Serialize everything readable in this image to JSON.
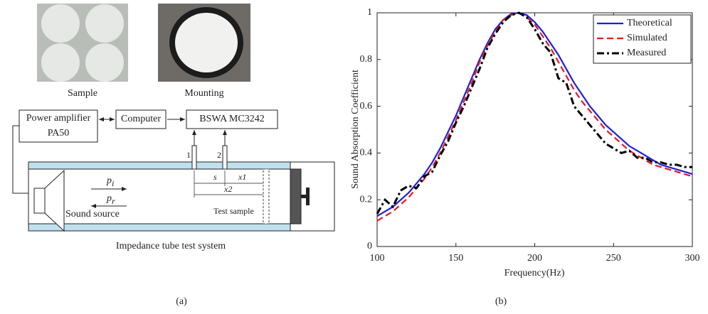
{
  "panel_a": {
    "label": "(a)",
    "photos": [
      "Sample",
      "Mounting"
    ],
    "boxes": {
      "amplifier": [
        "Power amplifier",
        "PA50"
      ],
      "computer": "Computer",
      "analyzer": "BSWA MC3242"
    },
    "mics": [
      "1",
      "2"
    ],
    "distances": {
      "s": "s",
      "x1": "x1",
      "x2": "x2"
    },
    "incident": [
      "p",
      "i"
    ],
    "reflected": [
      "p",
      "r"
    ],
    "source": "Sound source",
    "sample": "Test sample",
    "caption": "Impedance tube test system"
  },
  "chart_data": {
    "type": "line",
    "label": "(b)",
    "xlabel": "Frequency(Hz)",
    "ylabel": "Sound Absorption Coefficient",
    "x": [
      100,
      105,
      110,
      115,
      120,
      125,
      130,
      135,
      140,
      145,
      150,
      155,
      160,
      165,
      170,
      175,
      180,
      185,
      190,
      195,
      200,
      205,
      210,
      215,
      220,
      225,
      230,
      235,
      240,
      245,
      250,
      255,
      260,
      265,
      270,
      275,
      280,
      285,
      290,
      295,
      300
    ],
    "series": [
      {
        "name": "Theoretical",
        "color": "#1f1fe0",
        "dash": "solid",
        "values": [
          0.13,
          0.15,
          0.17,
          0.2,
          0.23,
          0.27,
          0.31,
          0.36,
          0.42,
          0.49,
          0.56,
          0.64,
          0.72,
          0.8,
          0.87,
          0.93,
          0.97,
          0.995,
          1.0,
          0.99,
          0.96,
          0.92,
          0.87,
          0.82,
          0.76,
          0.7,
          0.65,
          0.6,
          0.56,
          0.52,
          0.49,
          0.46,
          0.43,
          0.41,
          0.39,
          0.37,
          0.35,
          0.34,
          0.33,
          0.32,
          0.31
        ]
      },
      {
        "name": "Simulated",
        "color": "#e8191b",
        "dash": "dashed",
        "values": [
          0.11,
          0.13,
          0.15,
          0.18,
          0.21,
          0.25,
          0.29,
          0.34,
          0.4,
          0.47,
          0.54,
          0.62,
          0.7,
          0.79,
          0.86,
          0.92,
          0.97,
          0.99,
          1.0,
          0.98,
          0.95,
          0.9,
          0.85,
          0.79,
          0.73,
          0.67,
          0.62,
          0.58,
          0.54,
          0.5,
          0.47,
          0.44,
          0.41,
          0.39,
          0.37,
          0.35,
          0.34,
          0.33,
          0.32,
          0.31,
          0.3
        ]
      },
      {
        "name": "Measured",
        "color": "#000000",
        "dash": "dashdot",
        "values": [
          0.14,
          0.2,
          0.17,
          0.24,
          0.26,
          0.25,
          0.3,
          0.32,
          0.39,
          0.45,
          0.53,
          0.6,
          0.68,
          0.76,
          0.85,
          0.91,
          0.96,
          0.99,
          1.0,
          0.98,
          0.93,
          0.87,
          0.83,
          0.72,
          0.7,
          0.6,
          0.56,
          0.52,
          0.48,
          0.44,
          0.42,
          0.4,
          0.41,
          0.38,
          0.38,
          0.36,
          0.36,
          0.35,
          0.35,
          0.34,
          0.34
        ]
      }
    ],
    "xlim": [
      100,
      300
    ],
    "xticks": [
      100,
      150,
      200,
      250,
      300
    ],
    "ylim": [
      0,
      1
    ],
    "yticks": [
      0,
      0.2,
      0.4,
      0.6,
      0.8,
      1
    ],
    "legend": "upper right"
  }
}
